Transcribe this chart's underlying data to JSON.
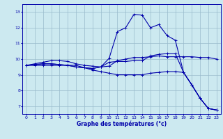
{
  "xlabel": "Graphe des températures (°c)",
  "ylabel": "",
  "bg_color": "#cce9f0",
  "line_color": "#0000aa",
  "grid_color": "#99bbcc",
  "xlim": [
    -0.5,
    23.5
  ],
  "ylim": [
    6.5,
    13.5
  ],
  "xticks": [
    0,
    1,
    2,
    3,
    4,
    5,
    6,
    7,
    8,
    9,
    10,
    11,
    12,
    13,
    14,
    15,
    16,
    17,
    18,
    19,
    20,
    21,
    22,
    23
  ],
  "yticks": [
    7,
    8,
    9,
    10,
    11,
    12,
    13
  ],
  "line1_y": [
    9.6,
    9.7,
    9.8,
    9.9,
    9.9,
    9.85,
    9.7,
    9.6,
    9.55,
    9.5,
    9.55,
    9.9,
    10.0,
    10.1,
    10.1,
    10.15,
    10.2,
    10.15,
    10.15,
    10.15,
    10.15,
    10.1,
    10.1,
    10.0
  ],
  "line2_y": [
    9.6,
    9.65,
    9.7,
    9.7,
    9.65,
    9.6,
    9.5,
    9.45,
    9.4,
    9.5,
    10.05,
    11.75,
    12.0,
    12.85,
    12.8,
    12.0,
    12.2,
    11.5,
    11.2,
    9.15,
    8.35,
    7.5,
    6.85,
    6.75
  ],
  "line3_y": [
    9.6,
    9.65,
    9.7,
    9.7,
    9.65,
    9.6,
    9.5,
    9.45,
    9.4,
    9.5,
    9.8,
    9.85,
    9.85,
    9.9,
    9.9,
    10.2,
    10.3,
    10.35,
    10.35,
    9.15,
    8.35,
    7.5,
    6.85,
    6.75
  ],
  "line4_y": [
    9.6,
    9.6,
    9.6,
    9.6,
    9.6,
    9.6,
    9.6,
    9.45,
    9.3,
    9.2,
    9.1,
    9.0,
    9.0,
    9.0,
    9.0,
    9.1,
    9.15,
    9.2,
    9.2,
    9.15,
    8.35,
    7.5,
    6.85,
    6.75
  ]
}
